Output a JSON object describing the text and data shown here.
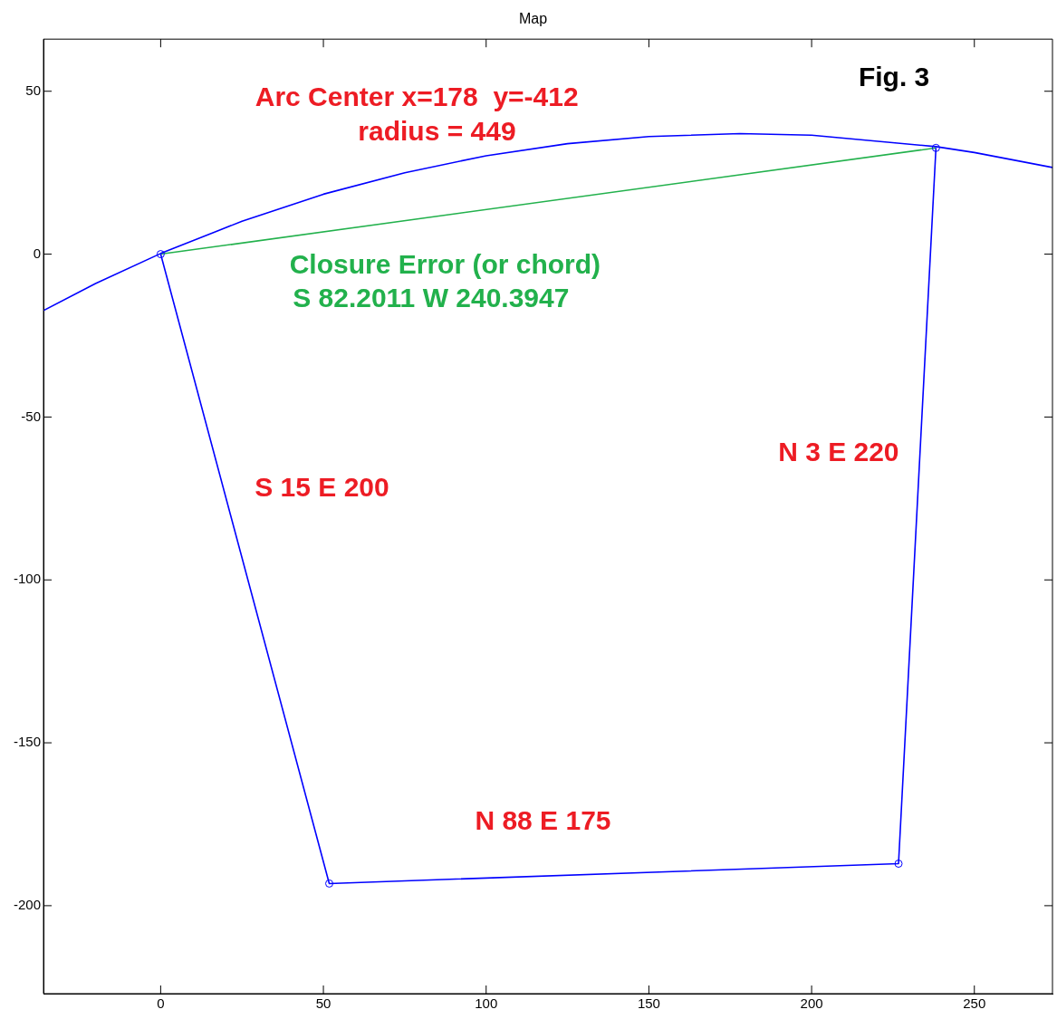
{
  "chart_data": {
    "type": "line",
    "title": "Map",
    "xlim": [
      -36,
      274
    ],
    "ylim": [
      -227,
      66
    ],
    "xticks": [
      0,
      50,
      100,
      150,
      200,
      250
    ],
    "yticks": [
      -200,
      -150,
      -100,
      -50,
      0,
      50
    ],
    "series": [
      {
        "color": "#0000ff",
        "marker": "none",
        "x": [
          -36,
          -20,
          0,
          25,
          50,
          75,
          100,
          125,
          150,
          178,
          200,
          238.2,
          250,
          274
        ],
        "values": [
          -17.3,
          -9.0,
          0.2,
          10.1,
          18.4,
          25.0,
          30.2,
          33.9,
          36.1,
          37.0,
          36.5,
          33.0,
          31.2,
          26.6
        ]
      },
      {
        "color": "#0000ff",
        "marker": "circle",
        "x": [
          0,
          51.8,
          226.7,
          238.2
        ],
        "values": [
          0,
          -193.2,
          -187.1,
          32.6
        ]
      },
      {
        "color": "#22b14c",
        "marker": "none",
        "x": [
          238.2,
          0
        ],
        "values": [
          32.6,
          0
        ]
      }
    ],
    "annotations": [
      "Arc Center x=178  y=-412",
      "radius = 449",
      "Closure Error (or chord)",
      "S 82.2011 W 240.3947",
      "S 15 E 200",
      "N 3 E 220",
      "N 88 E 175",
      "Fig. 3"
    ]
  }
}
